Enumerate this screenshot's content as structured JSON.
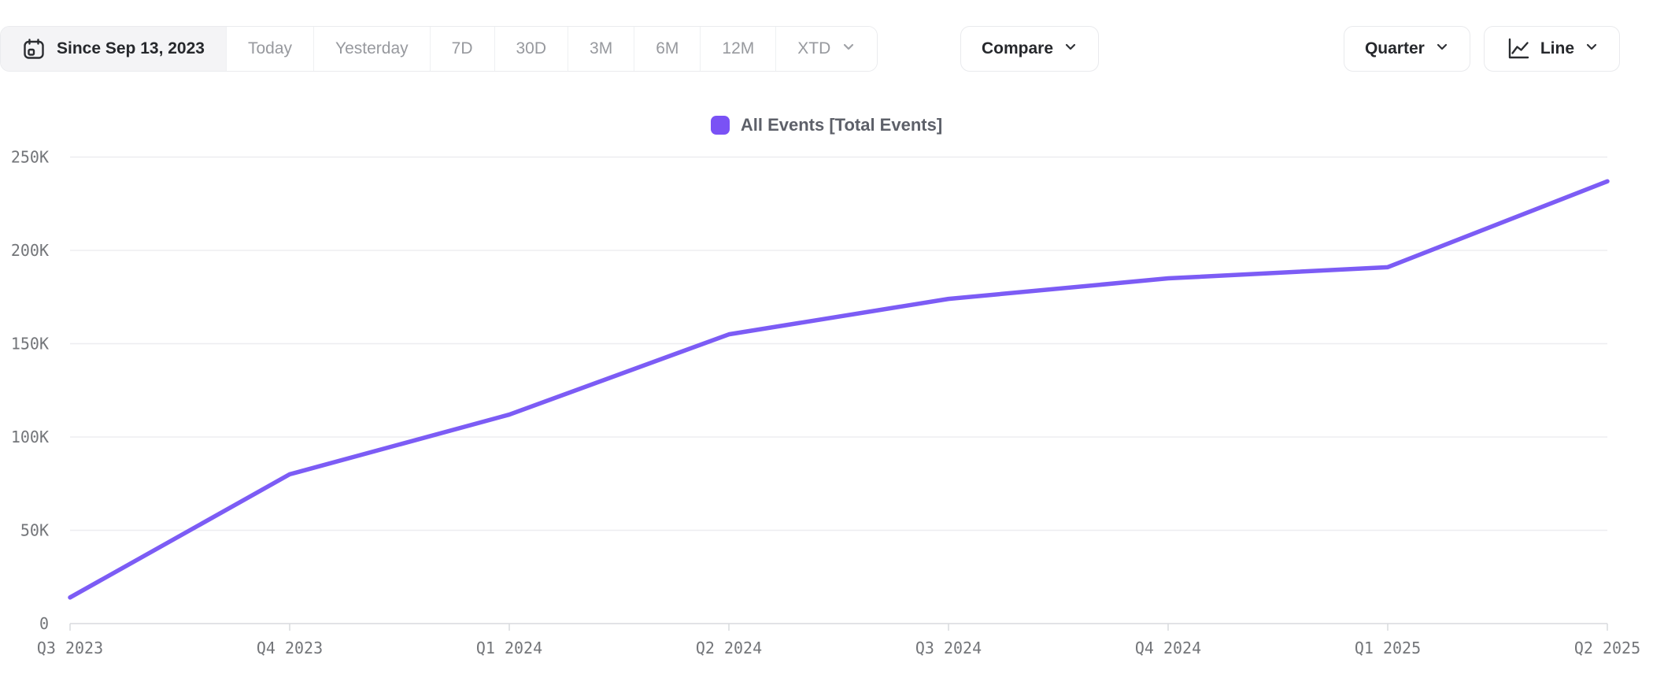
{
  "toolbar": {
    "date_range_label": "Since Sep 13, 2023",
    "presets": [
      "Today",
      "Yesterday",
      "7D",
      "30D",
      "3M",
      "6M",
      "12M"
    ],
    "xtd_label": "XTD",
    "compare_label": "Compare",
    "granularity_label": "Quarter",
    "chart_type_label": "Line"
  },
  "legend": {
    "series_label": "All Events [Total Events]"
  },
  "colors": {
    "accent": "#7a52f5",
    "line": "#7c5cf5",
    "grid": "#ededf0",
    "axis": "#d9dadd",
    "axis_text": "#737579"
  },
  "chart_data": {
    "type": "line",
    "title": "",
    "x": [
      "Q3 2023",
      "Q4 2023",
      "Q1 2024",
      "Q2 2024",
      "Q3 2024",
      "Q4 2024",
      "Q1 2025",
      "Q2 2025"
    ],
    "series": [
      {
        "name": "All Events [Total Events]",
        "values": [
          14000,
          80000,
          112000,
          155000,
          174000,
          185000,
          191000,
          237000
        ]
      }
    ],
    "ylim": [
      0,
      250000
    ],
    "yticks": [
      0,
      50000,
      100000,
      150000,
      200000,
      250000
    ],
    "ytick_labels": [
      "0",
      "50K",
      "100K",
      "150K",
      "200K",
      "250K"
    ],
    "grid": "horizontal",
    "legend_position": "top-center",
    "line_color": "#7c5cf5"
  }
}
